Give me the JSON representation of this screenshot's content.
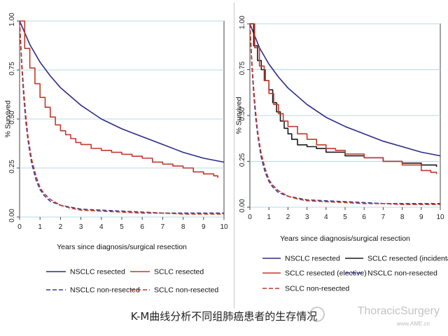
{
  "caption": "K-M曲线分析不同组肺癌患者的生存情况",
  "watermark": {
    "text": "ThoracicSurgery",
    "url": "www.AME.cn"
  },
  "colors": {
    "nsclc_resected": "#2b2b8a",
    "nsclc_nonresected": "#3a3a9a",
    "sclc_resected": "#c0392b",
    "sclc_nonresected": "#c0392b",
    "sclc_incidental": "#1a1a1a",
    "grid": "#b8d9e6"
  },
  "chart_data": [
    {
      "type": "line",
      "panel": "left",
      "xlabel": "Years since diagnosis/surgical resection",
      "ylabel": "% Survived",
      "xlim": [
        0,
        10
      ],
      "ylim": [
        0,
        1
      ],
      "x_ticks": [
        "0",
        "1",
        "2",
        "3",
        "4",
        "5",
        "6",
        "7",
        "8",
        "9",
        "10"
      ],
      "y_ticks": [
        "0.00",
        "0.25",
        "0.50",
        "0.75",
        "1.00"
      ],
      "grid": true,
      "legend": "bottom",
      "series": [
        {
          "key": "nsclc_res",
          "name": "NSCLC resected",
          "style": "solid",
          "step": false,
          "x": [
            0,
            0.5,
            1,
            1.5,
            2,
            3,
            4,
            5,
            6,
            7,
            8,
            9,
            10
          ],
          "y": [
            1.0,
            0.88,
            0.79,
            0.72,
            0.66,
            0.57,
            0.5,
            0.45,
            0.41,
            0.37,
            0.33,
            0.3,
            0.28
          ]
        },
        {
          "key": "sclc_res",
          "name": "SCLC resected",
          "style": "solid",
          "step": true,
          "x": [
            0,
            0.25,
            0.5,
            0.75,
            1,
            1.25,
            1.5,
            1.75,
            2,
            2.25,
            2.5,
            2.75,
            3,
            3.5,
            4,
            4.5,
            5,
            5.5,
            6,
            6.5,
            7,
            7.5,
            8,
            8.5,
            9,
            9.5,
            9.7
          ],
          "y": [
            1.0,
            0.86,
            0.76,
            0.68,
            0.61,
            0.56,
            0.51,
            0.47,
            0.44,
            0.42,
            0.4,
            0.38,
            0.37,
            0.35,
            0.34,
            0.33,
            0.32,
            0.31,
            0.3,
            0.28,
            0.27,
            0.26,
            0.25,
            0.23,
            0.22,
            0.21,
            0.2
          ]
        },
        {
          "key": "nsclc_non",
          "name": "NSCLC non-resected",
          "style": "dashed",
          "step": false,
          "x": [
            0,
            0.1,
            0.2,
            0.3,
            0.4,
            0.5,
            0.6,
            0.8,
            1,
            1.2,
            1.5,
            2,
            2.5,
            3,
            4,
            5,
            6,
            7,
            8,
            9,
            10
          ],
          "y": [
            1.0,
            0.78,
            0.62,
            0.49,
            0.4,
            0.33,
            0.27,
            0.19,
            0.14,
            0.11,
            0.08,
            0.06,
            0.05,
            0.04,
            0.035,
            0.03,
            0.025,
            0.02,
            0.02,
            0.02,
            0.02
          ]
        },
        {
          "key": "sclc_non",
          "name": "SCLC non-resected",
          "style": "dashed",
          "step": false,
          "x": [
            0,
            0.1,
            0.2,
            0.3,
            0.4,
            0.5,
            0.6,
            0.8,
            1,
            1.2,
            1.5,
            2,
            2.5,
            3,
            4,
            5,
            6,
            7,
            8,
            9,
            10
          ],
          "y": [
            1.0,
            0.8,
            0.65,
            0.52,
            0.42,
            0.35,
            0.29,
            0.21,
            0.15,
            0.12,
            0.09,
            0.06,
            0.045,
            0.035,
            0.03,
            0.025,
            0.02,
            0.02,
            0.015,
            0.015,
            0.015
          ]
        }
      ]
    },
    {
      "type": "line",
      "panel": "right",
      "xlabel": "Years since diagnosis/surgical resection",
      "ylabel": "% Survived",
      "xlim": [
        0,
        10
      ],
      "ylim": [
        0,
        1
      ],
      "x_ticks": [
        "0",
        "1",
        "2",
        "3",
        "4",
        "5",
        "6",
        "7",
        "8",
        "9",
        "10"
      ],
      "y_ticks": [
        "0.00",
        "0.25",
        "0.50",
        "0.75",
        "1.00"
      ],
      "grid": true,
      "legend": "bottom",
      "series": [
        {
          "key": "nsclc_res",
          "name": "NSCLC resected",
          "style": "solid",
          "step": false,
          "x": [
            0,
            0.5,
            1,
            1.5,
            2,
            3,
            4,
            5,
            6,
            7,
            8,
            9,
            10
          ],
          "y": [
            1.0,
            0.87,
            0.78,
            0.71,
            0.65,
            0.56,
            0.49,
            0.44,
            0.4,
            0.36,
            0.33,
            0.3,
            0.28
          ]
        },
        {
          "key": "sclc_inc",
          "name": "SCLC resected (incidental)",
          "style": "solid",
          "step": true,
          "x": [
            0,
            0.2,
            0.4,
            0.6,
            0.8,
            1,
            1.2,
            1.4,
            1.6,
            1.8,
            2,
            2.2,
            2.5,
            3,
            3.5,
            4,
            5,
            6,
            7,
            8,
            9,
            9.8
          ],
          "y": [
            1.0,
            0.88,
            0.8,
            0.75,
            0.69,
            0.64,
            0.57,
            0.52,
            0.47,
            0.43,
            0.4,
            0.37,
            0.34,
            0.33,
            0.32,
            0.3,
            0.28,
            0.27,
            0.25,
            0.24,
            0.23,
            0.22
          ]
        },
        {
          "key": "sclc_elec",
          "name": "SCLC resected (elective)",
          "style": "solid",
          "step": true,
          "x": [
            0,
            0.25,
            0.5,
            0.75,
            1,
            1.25,
            1.5,
            1.75,
            2,
            2.5,
            3,
            3.5,
            4,
            4.5,
            5,
            6,
            7,
            8,
            9,
            9.5,
            9.8
          ],
          "y": [
            1.0,
            0.87,
            0.77,
            0.69,
            0.62,
            0.56,
            0.51,
            0.47,
            0.44,
            0.4,
            0.37,
            0.34,
            0.32,
            0.31,
            0.29,
            0.27,
            0.25,
            0.23,
            0.2,
            0.19,
            0.18
          ]
        },
        {
          "key": "nsclc_non",
          "name": "NSCLC non-resected",
          "style": "dashed",
          "step": false,
          "x": [
            0,
            0.1,
            0.2,
            0.3,
            0.4,
            0.5,
            0.6,
            0.8,
            1,
            1.2,
            1.5,
            2,
            2.5,
            3,
            4,
            5,
            6,
            7,
            8,
            9,
            10
          ],
          "y": [
            1.0,
            0.78,
            0.62,
            0.49,
            0.4,
            0.33,
            0.27,
            0.19,
            0.14,
            0.11,
            0.08,
            0.06,
            0.05,
            0.04,
            0.035,
            0.03,
            0.025,
            0.02,
            0.02,
            0.02,
            0.02
          ]
        },
        {
          "key": "sclc_non",
          "name": "SCLC non-resected",
          "style": "dashed",
          "step": false,
          "x": [
            0,
            0.1,
            0.2,
            0.3,
            0.4,
            0.5,
            0.6,
            0.8,
            1,
            1.2,
            1.5,
            2,
            2.5,
            3,
            4,
            5,
            6,
            7,
            8,
            9,
            10
          ],
          "y": [
            1.0,
            0.8,
            0.65,
            0.52,
            0.42,
            0.35,
            0.29,
            0.21,
            0.15,
            0.12,
            0.09,
            0.06,
            0.045,
            0.035,
            0.03,
            0.025,
            0.02,
            0.02,
            0.015,
            0.015,
            0.015
          ]
        }
      ]
    }
  ]
}
